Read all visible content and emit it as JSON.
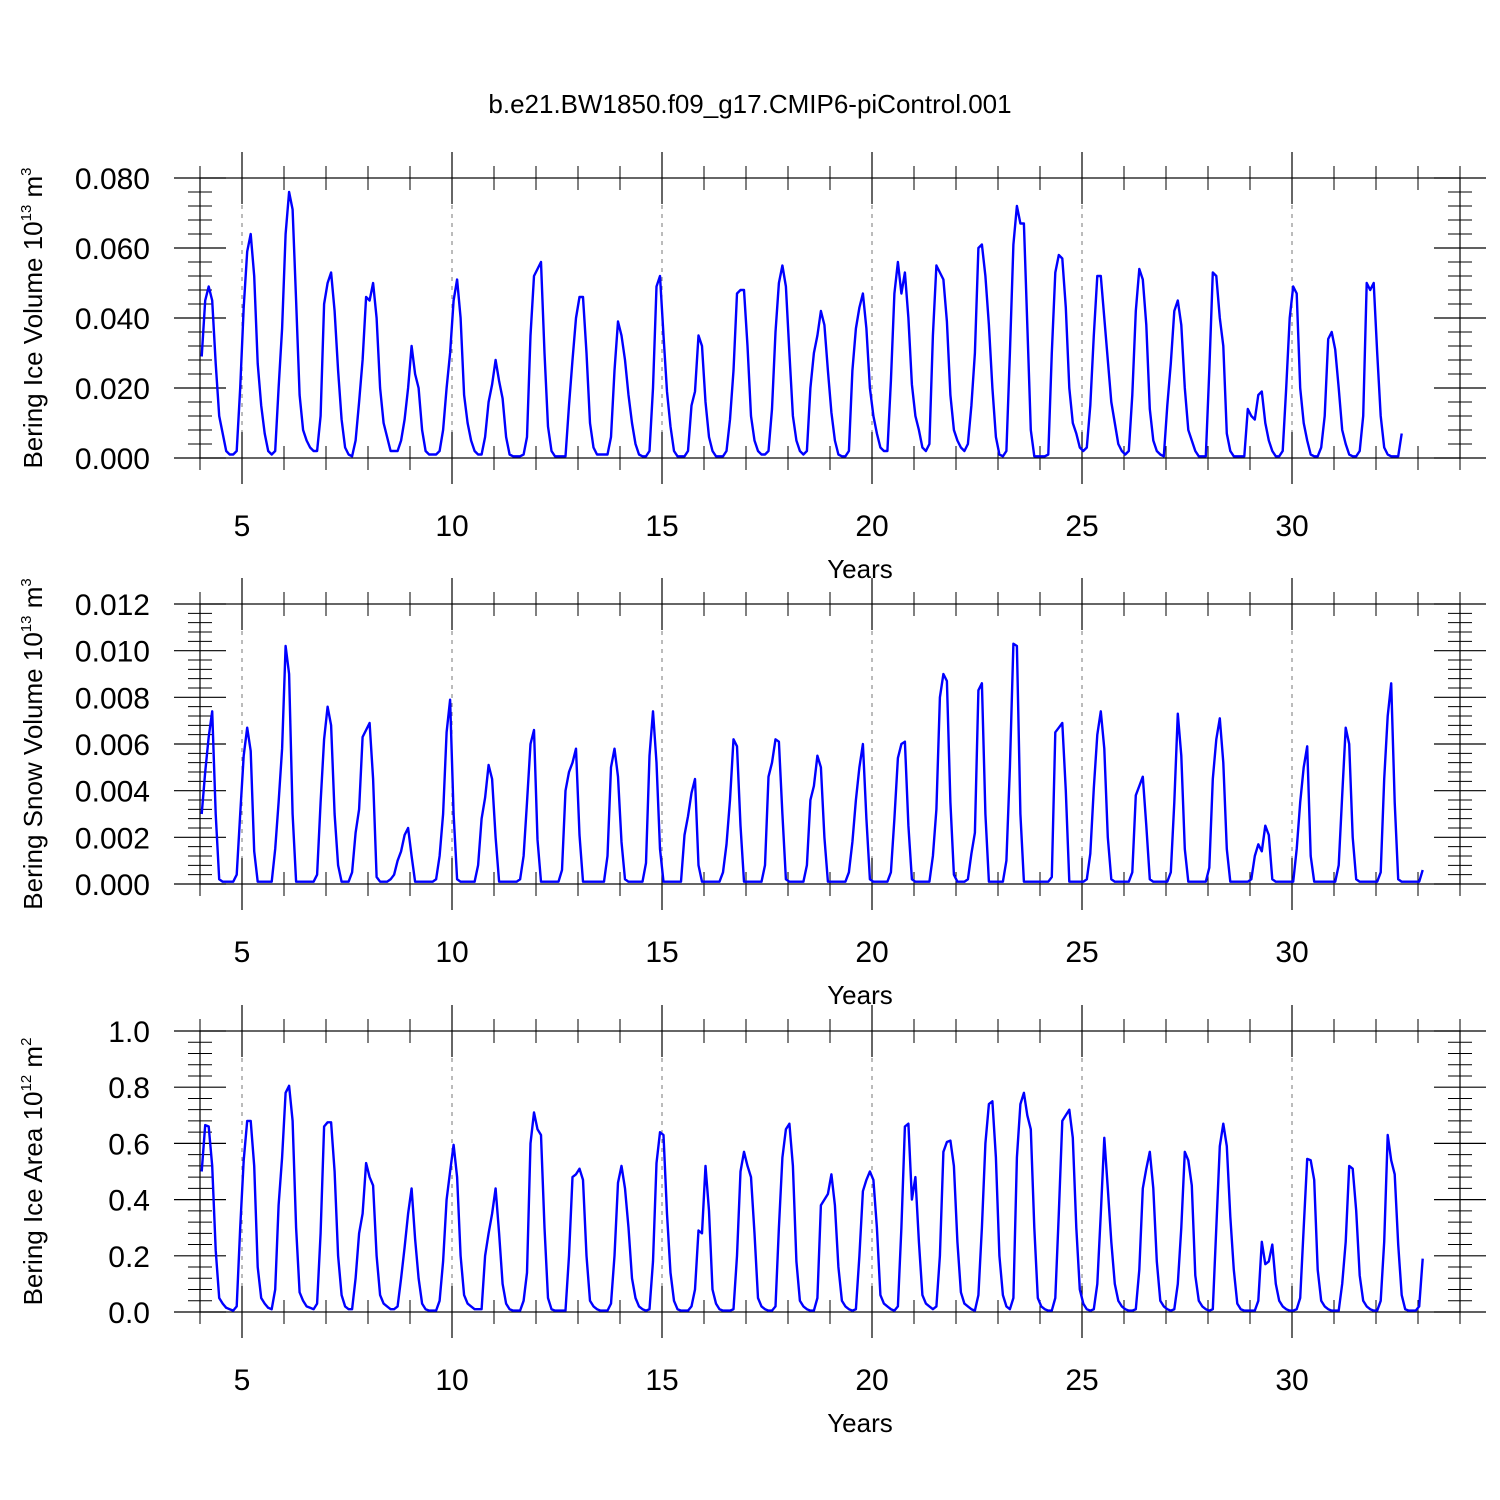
{
  "title": "b.e21.BW1850.f09_g17.CMIP6-piControl.001",
  "chart_data": [
    {
      "type": "line",
      "name": "ice-volume",
      "ylabel_main": "Bering Ice Volume 10",
      "ylabel_exp": "13",
      "ylabel_unit": " m",
      "ylabel_unit_exp": "3",
      "xlabel": "Years",
      "xlim": [
        4,
        34
      ],
      "ylim": [
        0,
        0.08
      ],
      "xticks": [
        5,
        10,
        15,
        20,
        25,
        30
      ],
      "xtick_labels": [
        "5",
        "10",
        "15",
        "20",
        "25",
        "30"
      ],
      "yticks": [
        0,
        0.02,
        0.04,
        0.06,
        0.08
      ],
      "ytick_labels": [
        "0.000",
        "0.020",
        "0.040",
        "0.060",
        "0.080"
      ],
      "grid": "vertical dashed at major x ticks",
      "color": "#0000ff",
      "start_year": 4.04,
      "step": 0.0833,
      "values": [
        0.029,
        0.045,
        0.049,
        0.045,
        0.027,
        0.012,
        0.007,
        0.002,
        0.001,
        0.001,
        0.002,
        0.02,
        0.043,
        0.059,
        0.064,
        0.052,
        0.027,
        0.015,
        0.007,
        0.002,
        0.001,
        0.002,
        0.02,
        0.037,
        0.064,
        0.076,
        0.071,
        0.045,
        0.018,
        0.008,
        0.005,
        0.003,
        0.002,
        0.002,
        0.012,
        0.044,
        0.05,
        0.053,
        0.042,
        0.025,
        0.011,
        0.003,
        0.001,
        0.0005,
        0.005,
        0.016,
        0.028,
        0.046,
        0.045,
        0.05,
        0.04,
        0.02,
        0.01,
        0.006,
        0.002,
        0.002,
        0.002,
        0.005,
        0.011,
        0.02,
        0.032,
        0.024,
        0.02,
        0.008,
        0.002,
        0.001,
        0.001,
        0.001,
        0.002,
        0.008,
        0.02,
        0.03,
        0.045,
        0.051,
        0.04,
        0.018,
        0.01,
        0.005,
        0.002,
        0.001,
        0.001,
        0.006,
        0.016,
        0.021,
        0.028,
        0.022,
        0.017,
        0.006,
        0.001,
        0.0005,
        0.0005,
        0.0005,
        0.001,
        0.006,
        0.035,
        0.052,
        0.054,
        0.056,
        0.03,
        0.009,
        0.002,
        0.0005,
        0.0005,
        0.0005,
        0.0005,
        0.015,
        0.028,
        0.04,
        0.046,
        0.046,
        0.03,
        0.01,
        0.003,
        0.001,
        0.001,
        0.001,
        0.001,
        0.006,
        0.025,
        0.039,
        0.035,
        0.028,
        0.018,
        0.01,
        0.004,
        0.001,
        0.0005,
        0.0005,
        0.002,
        0.02,
        0.049,
        0.052,
        0.035,
        0.019,
        0.009,
        0.002,
        0.0005,
        0.0005,
        0.0005,
        0.002,
        0.015,
        0.019,
        0.035,
        0.032,
        0.016,
        0.006,
        0.002,
        0.0005,
        0.0005,
        0.0005,
        0.002,
        0.011,
        0.025,
        0.047,
        0.048,
        0.048,
        0.032,
        0.012,
        0.005,
        0.002,
        0.001,
        0.001,
        0.002,
        0.014,
        0.036,
        0.05,
        0.055,
        0.049,
        0.03,
        0.012,
        0.005,
        0.002,
        0.001,
        0.002,
        0.02,
        0.03,
        0.035,
        0.042,
        0.038,
        0.025,
        0.013,
        0.005,
        0.001,
        0.0005,
        0.0005,
        0.002,
        0.025,
        0.037,
        0.043,
        0.047,
        0.037,
        0.02,
        0.012,
        0.007,
        0.003,
        0.002,
        0.002,
        0.022,
        0.047,
        0.056,
        0.047,
        0.053,
        0.04,
        0.021,
        0.012,
        0.008,
        0.003,
        0.002,
        0.004,
        0.035,
        0.055,
        0.053,
        0.051,
        0.039,
        0.018,
        0.008,
        0.005,
        0.003,
        0.002,
        0.004,
        0.015,
        0.03,
        0.06,
        0.061,
        0.052,
        0.038,
        0.02,
        0.006,
        0.001,
        0.0005,
        0.002,
        0.03,
        0.061,
        0.072,
        0.067,
        0.067,
        0.038,
        0.008,
        0.0005,
        0.0005,
        0.0005,
        0.0005,
        0.001,
        0.03,
        0.053,
        0.058,
        0.057,
        0.043,
        0.02,
        0.01,
        0.007,
        0.003,
        0.002,
        0.003,
        0.015,
        0.035,
        0.052,
        0.052,
        0.04,
        0.028,
        0.016,
        0.01,
        0.004,
        0.002,
        0.001,
        0.002,
        0.018,
        0.042,
        0.054,
        0.051,
        0.038,
        0.014,
        0.005,
        0.002,
        0.001,
        0.0005,
        0.015,
        0.027,
        0.042,
        0.045,
        0.038,
        0.02,
        0.008,
        0.005,
        0.002,
        0.0005,
        0.0005,
        0.0005,
        0.025,
        0.053,
        0.052,
        0.04,
        0.032,
        0.007,
        0.002,
        0.0005,
        0.0005,
        0.0005,
        0.0005,
        0.014,
        0.012,
        0.011,
        0.018,
        0.019,
        0.01,
        0.005,
        0.002,
        0.0005,
        0.0005,
        0.002,
        0.02,
        0.04,
        0.049,
        0.047,
        0.02,
        0.01,
        0.005,
        0.001,
        0.0005,
        0.0005,
        0.003,
        0.012,
        0.034,
        0.036,
        0.031,
        0.02,
        0.008,
        0.004,
        0.001,
        0.0005,
        0.0005,
        0.002,
        0.012,
        0.05,
        0.048,
        0.05,
        0.03,
        0.012,
        0.003,
        0.001,
        0.0005,
        0.0005,
        0.0005,
        0.007
      ]
    },
    {
      "type": "line",
      "name": "snow-volume",
      "ylabel_main": "Bering Snow Volume 10",
      "ylabel_exp": "13",
      "ylabel_unit": " m",
      "ylabel_unit_exp": "3",
      "xlabel": "Years",
      "xlim": [
        4,
        34
      ],
      "ylim": [
        0,
        0.012
      ],
      "xticks": [
        5,
        10,
        15,
        20,
        25,
        30
      ],
      "xtick_labels": [
        "5",
        "10",
        "15",
        "20",
        "25",
        "30"
      ],
      "yticks": [
        0,
        0.002,
        0.004,
        0.006,
        0.008,
        0.01,
        0.012
      ],
      "ytick_labels": [
        "0.000",
        "0.002",
        "0.004",
        "0.006",
        "0.008",
        "0.010",
        "0.012"
      ],
      "grid": "vertical dashed at major x ticks",
      "color": "#0000ff",
      "start_year": 4.04,
      "step": 0.0833,
      "values": [
        0.003,
        0.0048,
        0.0063,
        0.0074,
        0.003,
        0.0002,
        0.0001,
        0.0001,
        0.0001,
        0.0001,
        0.0004,
        0.003,
        0.0055,
        0.0067,
        0.0057,
        0.0014,
        0.0001,
        0.0001,
        0.0001,
        0.0001,
        0.0001,
        0.0015,
        0.0035,
        0.0058,
        0.0102,
        0.009,
        0.003,
        0.0001,
        0.0001,
        0.0001,
        0.0001,
        0.0001,
        0.0001,
        0.0004,
        0.0035,
        0.0062,
        0.0076,
        0.0068,
        0.003,
        0.0008,
        0.0001,
        0.0001,
        0.0001,
        0.0005,
        0.0022,
        0.0032,
        0.0063,
        0.0066,
        0.0069,
        0.0045,
        0.0003,
        0.0001,
        0.0001,
        0.0001,
        0.0002,
        0.0004,
        0.001,
        0.0014,
        0.0021,
        0.0024,
        0.0012,
        0.0001,
        0.0001,
        0.0001,
        0.0001,
        0.0001,
        0.0001,
        0.0002,
        0.0012,
        0.003,
        0.0065,
        0.0079,
        0.003,
        0.0002,
        0.0001,
        0.0001,
        0.0001,
        0.0001,
        0.0001,
        0.0008,
        0.0028,
        0.0037,
        0.0051,
        0.0045,
        0.002,
        0.0001,
        0.0001,
        0.0001,
        0.0001,
        0.0001,
        0.0001,
        0.0002,
        0.0012,
        0.0035,
        0.006,
        0.0066,
        0.0019,
        0.0001,
        0.0001,
        0.0001,
        0.0001,
        0.0001,
        0.0001,
        0.0006,
        0.004,
        0.0048,
        0.0052,
        0.0058,
        0.0021,
        0.0001,
        0.0001,
        0.0001,
        0.0001,
        0.0001,
        0.0001,
        0.0001,
        0.0012,
        0.005,
        0.0058,
        0.0046,
        0.0018,
        0.0002,
        0.0001,
        0.0001,
        0.0001,
        0.0001,
        0.0001,
        0.0009,
        0.0055,
        0.0074,
        0.0052,
        0.0015,
        0.0001,
        0.0001,
        0.0001,
        0.0001,
        0.0001,
        0.0001,
        0.0021,
        0.0029,
        0.0039,
        0.0045,
        0.0008,
        0.0001,
        0.0001,
        0.0001,
        0.0001,
        0.0001,
        0.0001,
        0.0005,
        0.0017,
        0.0036,
        0.0062,
        0.0059,
        0.0025,
        0.0001,
        0.0001,
        0.0001,
        0.0001,
        0.0001,
        0.0001,
        0.0008,
        0.0046,
        0.0052,
        0.0062,
        0.0061,
        0.003,
        0.0002,
        0.0001,
        0.0001,
        0.0001,
        0.0001,
        0.0001,
        0.0008,
        0.0036,
        0.0042,
        0.0055,
        0.005,
        0.002,
        0.0001,
        0.0001,
        0.0001,
        0.0001,
        0.0001,
        0.0001,
        0.0005,
        0.0018,
        0.0036,
        0.005,
        0.006,
        0.0028,
        0.0002,
        0.0001,
        0.0001,
        0.0001,
        0.0001,
        0.0001,
        0.0005,
        0.0028,
        0.0054,
        0.006,
        0.0061,
        0.0025,
        0.0002,
        0.0001,
        0.0001,
        0.0001,
        0.0001,
        0.0001,
        0.0012,
        0.0032,
        0.008,
        0.009,
        0.0087,
        0.0035,
        0.0004,
        0.0001,
        0.0001,
        0.0001,
        0.0002,
        0.0013,
        0.0022,
        0.0083,
        0.0086,
        0.003,
        0.0001,
        0.0001,
        0.0001,
        0.0001,
        0.0001,
        0.001,
        0.005,
        0.0103,
        0.0102,
        0.003,
        0.0001,
        0.0001,
        0.0001,
        0.0001,
        0.0001,
        0.0001,
        0.0001,
        0.0001,
        0.0003,
        0.0065,
        0.0067,
        0.0069,
        0.004,
        0.0001,
        0.0001,
        0.0001,
        0.0001,
        0.0001,
        0.0002,
        0.0013,
        0.0041,
        0.0064,
        0.0074,
        0.0058,
        0.002,
        0.0002,
        0.0001,
        0.0001,
        0.0001,
        0.0001,
        0.0001,
        0.0005,
        0.0038,
        0.0042,
        0.0046,
        0.0025,
        0.0002,
        0.0001,
        0.0001,
        0.0001,
        0.0001,
        0.0001,
        0.0005,
        0.0035,
        0.0073,
        0.0055,
        0.0015,
        0.0001,
        0.0001,
        0.0001,
        0.0001,
        0.0001,
        0.0001,
        0.0007,
        0.0045,
        0.0062,
        0.0071,
        0.0052,
        0.0015,
        0.0001,
        0.0001,
        0.0001,
        0.0001,
        0.0001,
        0.0001,
        0.0002,
        0.0012,
        0.0017,
        0.0014,
        0.0025,
        0.0021,
        0.0002,
        0.0001,
        0.0001,
        0.0001,
        0.0001,
        0.0001,
        0.0001,
        0.0015,
        0.0035,
        0.005,
        0.0059,
        0.0012,
        0.0001,
        0.0001,
        0.0001,
        0.0001,
        0.0001,
        0.0001,
        0.0001,
        0.0008,
        0.0038,
        0.0067,
        0.006,
        0.002,
        0.0002,
        0.0001,
        0.0001,
        0.0001,
        0.0001,
        0.0001,
        0.0001,
        0.0005,
        0.0045,
        0.0072,
        0.0086,
        0.0035,
        0.0002,
        0.0001,
        0.0001,
        0.0001,
        0.0001,
        0.0001,
        0.0001,
        0.0006
      ]
    },
    {
      "type": "line",
      "name": "ice-area",
      "ylabel_main": "Bering Ice Area 10",
      "ylabel_exp": "12",
      "ylabel_unit": " m",
      "ylabel_unit_exp": "2",
      "xlabel": "Years",
      "xlim": [
        4,
        34
      ],
      "ylim": [
        0,
        1.0
      ],
      "xticks": [
        5,
        10,
        15,
        20,
        25,
        30
      ],
      "xtick_labels": [
        "5",
        "10",
        "15",
        "20",
        "25",
        "30"
      ],
      "yticks": [
        0,
        0.2,
        0.4,
        0.6,
        0.8,
        1.0
      ],
      "ytick_labels": [
        "0.0",
        "0.2",
        "0.4",
        "0.6",
        "0.8",
        "1.0"
      ],
      "grid": "vertical dashed at major x ticks",
      "color": "#0000ff",
      "start_year": 4.04,
      "step": 0.0833,
      "values": [
        0.5,
        0.665,
        0.66,
        0.52,
        0.22,
        0.05,
        0.03,
        0.015,
        0.01,
        0.005,
        0.02,
        0.3,
        0.54,
        0.68,
        0.68,
        0.52,
        0.16,
        0.05,
        0.03,
        0.015,
        0.01,
        0.08,
        0.38,
        0.55,
        0.78,
        0.805,
        0.68,
        0.3,
        0.07,
        0.04,
        0.02,
        0.015,
        0.01,
        0.03,
        0.28,
        0.66,
        0.675,
        0.675,
        0.5,
        0.2,
        0.06,
        0.02,
        0.01,
        0.01,
        0.12,
        0.28,
        0.35,
        0.53,
        0.48,
        0.45,
        0.2,
        0.06,
        0.03,
        0.02,
        0.01,
        0.01,
        0.02,
        0.12,
        0.23,
        0.35,
        0.44,
        0.26,
        0.12,
        0.03,
        0.01,
        0.005,
        0.005,
        0.005,
        0.04,
        0.18,
        0.4,
        0.5,
        0.595,
        0.48,
        0.2,
        0.06,
        0.03,
        0.02,
        0.01,
        0.01,
        0.01,
        0.2,
        0.28,
        0.35,
        0.44,
        0.28,
        0.1,
        0.03,
        0.01,
        0.005,
        0.005,
        0.005,
        0.04,
        0.14,
        0.6,
        0.71,
        0.65,
        0.63,
        0.3,
        0.05,
        0.01,
        0.005,
        0.005,
        0.005,
        0.005,
        0.2,
        0.48,
        0.49,
        0.51,
        0.47,
        0.2,
        0.04,
        0.02,
        0.01,
        0.005,
        0.005,
        0.005,
        0.03,
        0.2,
        0.46,
        0.52,
        0.44,
        0.3,
        0.12,
        0.05,
        0.02,
        0.01,
        0.005,
        0.01,
        0.18,
        0.53,
        0.64,
        0.63,
        0.35,
        0.14,
        0.04,
        0.01,
        0.005,
        0.005,
        0.005,
        0.02,
        0.08,
        0.29,
        0.28,
        0.52,
        0.36,
        0.08,
        0.03,
        0.01,
        0.005,
        0.005,
        0.005,
        0.01,
        0.2,
        0.5,
        0.57,
        0.52,
        0.48,
        0.28,
        0.05,
        0.02,
        0.01,
        0.005,
        0.005,
        0.02,
        0.3,
        0.55,
        0.65,
        0.67,
        0.52,
        0.18,
        0.04,
        0.02,
        0.01,
        0.005,
        0.005,
        0.05,
        0.38,
        0.4,
        0.42,
        0.49,
        0.38,
        0.16,
        0.04,
        0.02,
        0.01,
        0.005,
        0.01,
        0.2,
        0.43,
        0.47,
        0.5,
        0.47,
        0.3,
        0.06,
        0.03,
        0.02,
        0.01,
        0.005,
        0.02,
        0.3,
        0.66,
        0.67,
        0.4,
        0.48,
        0.25,
        0.06,
        0.03,
        0.02,
        0.01,
        0.02,
        0.2,
        0.57,
        0.605,
        0.61,
        0.52,
        0.25,
        0.07,
        0.03,
        0.02,
        0.01,
        0.005,
        0.06,
        0.3,
        0.6,
        0.74,
        0.75,
        0.55,
        0.2,
        0.06,
        0.02,
        0.01,
        0.05,
        0.55,
        0.74,
        0.78,
        0.7,
        0.65,
        0.3,
        0.05,
        0.02,
        0.01,
        0.005,
        0.005,
        0.05,
        0.35,
        0.68,
        0.7,
        0.72,
        0.62,
        0.3,
        0.08,
        0.03,
        0.01,
        0.005,
        0.01,
        0.1,
        0.35,
        0.62,
        0.44,
        0.25,
        0.1,
        0.04,
        0.02,
        0.01,
        0.005,
        0.005,
        0.01,
        0.15,
        0.44,
        0.51,
        0.57,
        0.44,
        0.18,
        0.04,
        0.02,
        0.01,
        0.005,
        0.01,
        0.1,
        0.3,
        0.57,
        0.54,
        0.45,
        0.13,
        0.04,
        0.02,
        0.01,
        0.005,
        0.01,
        0.3,
        0.59,
        0.67,
        0.59,
        0.34,
        0.15,
        0.03,
        0.01,
        0.005,
        0.005,
        0.005,
        0.005,
        0.04,
        0.25,
        0.17,
        0.18,
        0.24,
        0.1,
        0.04,
        0.02,
        0.01,
        0.005,
        0.005,
        0.01,
        0.05,
        0.3,
        0.545,
        0.54,
        0.47,
        0.15,
        0.04,
        0.02,
        0.01,
        0.005,
        0.005,
        0.005,
        0.1,
        0.25,
        0.52,
        0.51,
        0.36,
        0.13,
        0.04,
        0.02,
        0.01,
        0.005,
        0.005,
        0.04,
        0.25,
        0.63,
        0.54,
        0.49,
        0.24,
        0.06,
        0.01,
        0.005,
        0.005,
        0.005,
        0.02,
        0.19
      ]
    }
  ]
}
